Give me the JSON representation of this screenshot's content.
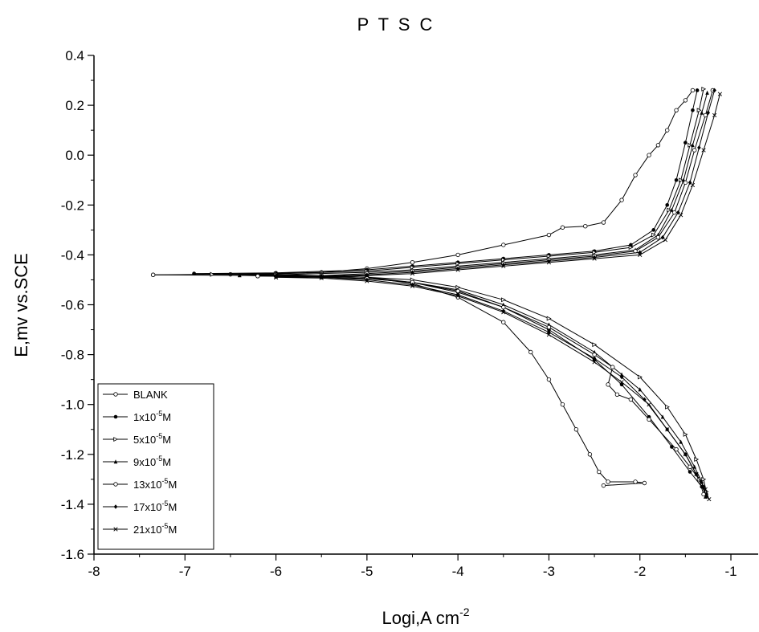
{
  "chart_data": {
    "type": "line",
    "title": "P T S C",
    "xlabel": {
      "base": "Logi,A cm",
      "sup": "-2"
    },
    "ylabel": "E,mv vs.SCE",
    "xlim": [
      -8,
      -0.7
    ],
    "ylim": [
      -1.6,
      0.4
    ],
    "xticks": [
      -8,
      -7,
      -6,
      -5,
      -4,
      -3,
      -2,
      -1
    ],
    "xtick_labels": [
      "-8",
      "-7",
      "-6",
      "-5",
      "-4",
      "-3",
      "-2",
      "-1"
    ],
    "yticks": [
      -1.6,
      -1.4,
      -1.2,
      -1.0,
      -0.8,
      -0.6,
      -0.4,
      -0.2,
      0.0,
      0.2,
      0.4
    ],
    "ytick_labels": [
      "-1.6",
      "-1.4",
      "-1.2",
      "-1.0",
      "-0.8",
      "-0.6",
      "-0.4",
      "-0.2",
      "0.0",
      "0.2",
      "0.4"
    ],
    "grid": false,
    "legend_position": "bottom-left",
    "series": [
      {
        "name": {
          "base": "BLANK",
          "sup": "",
          "unit": ""
        },
        "marker": "open-circle",
        "anodic": [
          [
            -7.35,
            -0.48
          ],
          [
            -6.5,
            -0.478
          ],
          [
            -5.5,
            -0.47
          ],
          [
            -5.0,
            -0.455
          ],
          [
            -4.5,
            -0.43
          ],
          [
            -4.0,
            -0.4
          ],
          [
            -3.5,
            -0.36
          ],
          [
            -3.0,
            -0.32
          ],
          [
            -2.85,
            -0.29
          ],
          [
            -2.6,
            -0.285
          ],
          [
            -2.4,
            -0.27
          ],
          [
            -2.2,
            -0.18
          ],
          [
            -2.05,
            -0.08
          ],
          [
            -1.9,
            0.0
          ],
          [
            -1.8,
            0.04
          ],
          [
            -1.7,
            0.1
          ],
          [
            -1.6,
            0.18
          ],
          [
            -1.5,
            0.22
          ],
          [
            -1.42,
            0.26
          ]
        ],
        "cathodic": [
          [
            -7.35,
            -0.48
          ],
          [
            -6.0,
            -0.483
          ],
          [
            -5.0,
            -0.49
          ],
          [
            -4.5,
            -0.515
          ],
          [
            -4.0,
            -0.57
          ],
          [
            -3.5,
            -0.67
          ],
          [
            -3.2,
            -0.79
          ],
          [
            -3.0,
            -0.9
          ],
          [
            -2.85,
            -1.0
          ],
          [
            -2.7,
            -1.1
          ],
          [
            -2.55,
            -1.2
          ],
          [
            -2.45,
            -1.27
          ],
          [
            -2.35,
            -1.31
          ],
          [
            -2.05,
            -1.31
          ],
          [
            -1.95,
            -1.315
          ],
          [
            -2.4,
            -1.325
          ]
        ]
      },
      {
        "name": {
          "base": "1x10",
          "sup": "-5",
          "unit": "M"
        },
        "marker": "filled-circle",
        "anodic": [
          [
            -6.9,
            -0.475
          ],
          [
            -6.0,
            -0.472
          ],
          [
            -5.0,
            -0.46
          ],
          [
            -4.5,
            -0.445
          ],
          [
            -4.0,
            -0.43
          ],
          [
            -3.5,
            -0.415
          ],
          [
            -3.0,
            -0.4
          ],
          [
            -2.5,
            -0.385
          ],
          [
            -2.1,
            -0.36
          ],
          [
            -1.85,
            -0.3
          ],
          [
            -1.7,
            -0.2
          ],
          [
            -1.6,
            -0.1
          ],
          [
            -1.5,
            0.05
          ],
          [
            -1.42,
            0.18
          ],
          [
            -1.37,
            0.26
          ]
        ],
        "cathodic": [
          [
            -6.9,
            -0.475
          ],
          [
            -6.0,
            -0.478
          ],
          [
            -5.0,
            -0.49
          ],
          [
            -4.5,
            -0.51
          ],
          [
            -4.0,
            -0.55
          ],
          [
            -3.5,
            -0.61
          ],
          [
            -3.0,
            -0.7
          ],
          [
            -2.5,
            -0.82
          ],
          [
            -2.2,
            -0.92
          ],
          [
            -1.9,
            -1.05
          ],
          [
            -1.65,
            -1.17
          ],
          [
            -1.45,
            -1.27
          ],
          [
            -1.32,
            -1.33
          ],
          [
            -1.27,
            -1.36
          ]
        ]
      },
      {
        "name": {
          "base": "5x10",
          "sup": "-5",
          "unit": "M"
        },
        "marker": "right-triangle",
        "anodic": [
          [
            -6.7,
            -0.478
          ],
          [
            -6.0,
            -0.476
          ],
          [
            -5.0,
            -0.465
          ],
          [
            -4.5,
            -0.45
          ],
          [
            -4.0,
            -0.435
          ],
          [
            -3.5,
            -0.42
          ],
          [
            -3.0,
            -0.405
          ],
          [
            -2.5,
            -0.39
          ],
          [
            -2.1,
            -0.37
          ],
          [
            -1.85,
            -0.32
          ],
          [
            -1.68,
            -0.22
          ],
          [
            -1.55,
            -0.1
          ],
          [
            -1.45,
            0.04
          ],
          [
            -1.35,
            0.18
          ],
          [
            -1.3,
            0.265
          ]
        ],
        "cathodic": [
          [
            -6.7,
            -0.478
          ],
          [
            -6.0,
            -0.48
          ],
          [
            -5.0,
            -0.49
          ],
          [
            -4.5,
            -0.5
          ],
          [
            -4.0,
            -0.53
          ],
          [
            -3.5,
            -0.58
          ],
          [
            -3.0,
            -0.655
          ],
          [
            -2.5,
            -0.76
          ],
          [
            -2.0,
            -0.89
          ],
          [
            -1.7,
            -1.01
          ],
          [
            -1.5,
            -1.12
          ],
          [
            -1.38,
            -1.22
          ],
          [
            -1.3,
            -1.3
          ],
          [
            -1.27,
            -1.35
          ]
        ]
      },
      {
        "name": {
          "base": "9x10",
          "sup": "-5",
          "unit": "M"
        },
        "marker": "filled-triangle",
        "anodic": [
          [
            -6.4,
            -0.482
          ],
          [
            -6.0,
            -0.48
          ],
          [
            -5.0,
            -0.47
          ],
          [
            -4.5,
            -0.46
          ],
          [
            -4.0,
            -0.445
          ],
          [
            -3.5,
            -0.43
          ],
          [
            -3.0,
            -0.415
          ],
          [
            -2.5,
            -0.4
          ],
          [
            -2.05,
            -0.38
          ],
          [
            -1.8,
            -0.32
          ],
          [
            -1.65,
            -0.22
          ],
          [
            -1.52,
            -0.1
          ],
          [
            -1.42,
            0.04
          ],
          [
            -1.32,
            0.17
          ],
          [
            -1.26,
            0.25
          ]
        ],
        "cathodic": [
          [
            -6.4,
            -0.482
          ],
          [
            -6.0,
            -0.485
          ],
          [
            -5.0,
            -0.495
          ],
          [
            -4.5,
            -0.51
          ],
          [
            -4.0,
            -0.54
          ],
          [
            -3.5,
            -0.6
          ],
          [
            -3.0,
            -0.68
          ],
          [
            -2.5,
            -0.79
          ],
          [
            -2.2,
            -0.88
          ],
          [
            -2.0,
            -0.94
          ],
          [
            -1.75,
            -1.05
          ],
          [
            -1.55,
            -1.15
          ],
          [
            -1.4,
            -1.25
          ],
          [
            -1.32,
            -1.31
          ],
          [
            -1.28,
            -1.37
          ]
        ]
      },
      {
        "name": {
          "base": "13x10",
          "sup": "-5",
          "unit": "M"
        },
        "marker": "open-circle",
        "anodic": [
          [
            -6.2,
            -0.485
          ],
          [
            -5.5,
            -0.483
          ],
          [
            -5.0,
            -0.475
          ],
          [
            -4.5,
            -0.465
          ],
          [
            -4.0,
            -0.45
          ],
          [
            -3.5,
            -0.435
          ],
          [
            -3.0,
            -0.42
          ],
          [
            -2.5,
            -0.405
          ],
          [
            -2.05,
            -0.385
          ],
          [
            -1.8,
            -0.33
          ],
          [
            -1.62,
            -0.23
          ],
          [
            -1.5,
            -0.11
          ],
          [
            -1.4,
            0.02
          ],
          [
            -1.28,
            0.16
          ],
          [
            -1.2,
            0.26
          ]
        ],
        "cathodic": [
          [
            -6.2,
            -0.485
          ],
          [
            -5.5,
            -0.488
          ],
          [
            -5.0,
            -0.495
          ],
          [
            -4.5,
            -0.51
          ],
          [
            -4.0,
            -0.545
          ],
          [
            -3.5,
            -0.61
          ],
          [
            -3.0,
            -0.69
          ],
          [
            -2.5,
            -0.8
          ],
          [
            -2.3,
            -0.85
          ],
          [
            -2.35,
            -0.92
          ],
          [
            -2.25,
            -0.96
          ],
          [
            -2.1,
            -0.98
          ],
          [
            -1.9,
            -1.06
          ],
          [
            -1.6,
            -1.18
          ],
          [
            -1.45,
            -1.25
          ],
          [
            -1.35,
            -1.3
          ],
          [
            -1.3,
            -1.36
          ]
        ]
      },
      {
        "name": {
          "base": "17x10",
          "sup": "-5",
          "unit": "M"
        },
        "marker": "filled-diamond",
        "anodic": [
          [
            -6.0,
            -0.487
          ],
          [
            -5.5,
            -0.485
          ],
          [
            -5.0,
            -0.48
          ],
          [
            -4.5,
            -0.47
          ],
          [
            -4.0,
            -0.455
          ],
          [
            -3.5,
            -0.44
          ],
          [
            -3.0,
            -0.425
          ],
          [
            -2.5,
            -0.41
          ],
          [
            -2.0,
            -0.39
          ],
          [
            -1.75,
            -0.33
          ],
          [
            -1.58,
            -0.23
          ],
          [
            -1.45,
            -0.11
          ],
          [
            -1.35,
            0.03
          ],
          [
            -1.25,
            0.17
          ],
          [
            -1.18,
            0.26
          ]
        ],
        "cathodic": [
          [
            -6.0,
            -0.487
          ],
          [
            -5.5,
            -0.49
          ],
          [
            -5.0,
            -0.5
          ],
          [
            -4.5,
            -0.52
          ],
          [
            -4.0,
            -0.56
          ],
          [
            -3.5,
            -0.625
          ],
          [
            -3.0,
            -0.71
          ],
          [
            -2.5,
            -0.815
          ],
          [
            -2.2,
            -0.89
          ],
          [
            -1.95,
            -0.98
          ],
          [
            -1.7,
            -1.1
          ],
          [
            -1.5,
            -1.2
          ],
          [
            -1.38,
            -1.28
          ],
          [
            -1.3,
            -1.33
          ],
          [
            -1.27,
            -1.37
          ]
        ]
      },
      {
        "name": {
          "base": "21x10",
          "sup": "-5",
          "unit": "M"
        },
        "marker": "cross",
        "anodic": [
          [
            -6.0,
            -0.49
          ],
          [
            -5.5,
            -0.488
          ],
          [
            -5.0,
            -0.483
          ],
          [
            -4.5,
            -0.475
          ],
          [
            -4.0,
            -0.46
          ],
          [
            -3.5,
            -0.445
          ],
          [
            -3.0,
            -0.43
          ],
          [
            -2.5,
            -0.415
          ],
          [
            -2.0,
            -0.4
          ],
          [
            -1.72,
            -0.34
          ],
          [
            -1.55,
            -0.24
          ],
          [
            -1.42,
            -0.12
          ],
          [
            -1.3,
            0.02
          ],
          [
            -1.18,
            0.16
          ],
          [
            -1.12,
            0.245
          ]
        ],
        "cathodic": [
          [
            -6.0,
            -0.49
          ],
          [
            -5.5,
            -0.493
          ],
          [
            -5.0,
            -0.505
          ],
          [
            -4.5,
            -0.525
          ],
          [
            -4.0,
            -0.565
          ],
          [
            -3.5,
            -0.63
          ],
          [
            -3.0,
            -0.72
          ],
          [
            -2.5,
            -0.83
          ],
          [
            -2.2,
            -0.91
          ],
          [
            -1.9,
            -1.0
          ],
          [
            -1.7,
            -1.1
          ],
          [
            -1.5,
            -1.2
          ],
          [
            -1.38,
            -1.28
          ],
          [
            -1.28,
            -1.34
          ],
          [
            -1.24,
            -1.38
          ]
        ]
      }
    ]
  }
}
